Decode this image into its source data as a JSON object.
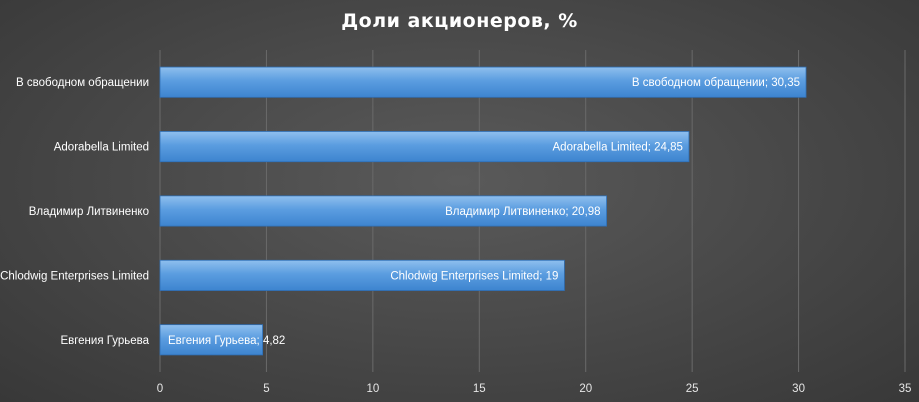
{
  "chart_data": {
    "type": "bar",
    "orientation": "horizontal",
    "title": "Доли акционеров, %",
    "categories": [
      "В свободном обращении",
      "Adorabella Limited",
      "Владимир Литвиненко",
      "Chlodwig Enterprises Limited",
      "Евгения Гурьева"
    ],
    "values": [
      30.35,
      24.85,
      20.98,
      19,
      4.82
    ],
    "data_labels": [
      "В свободном обращении; 30,35",
      "Adorabella Limited; 24,85",
      "Владимир Литвиненко; 20,98",
      "Chlodwig Enterprises Limited; 19",
      "Евгения Гурьева; 4,82"
    ],
    "xlim": [
      0,
      35
    ],
    "xticks": [
      0,
      5,
      10,
      15,
      20,
      25,
      30,
      35
    ],
    "grid": true,
    "legend": false,
    "colors": {
      "bar_top": "#8fbfee",
      "bar_bottom": "#3d84cf",
      "bar_edge": "#2f6fb5"
    }
  }
}
